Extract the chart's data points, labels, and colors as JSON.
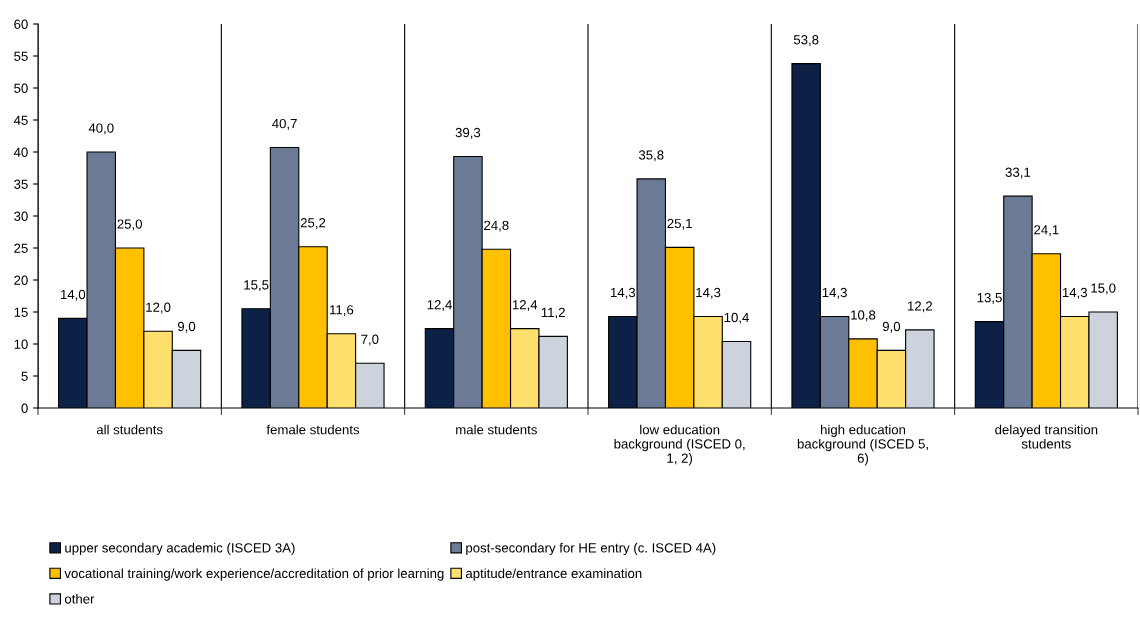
{
  "chart_data": {
    "type": "bar",
    "categories": [
      "all students",
      "female students",
      "male students",
      "low education\nbackground (ISCED 0,\n1, 2)",
      "high education\nbackground (ISCED 5,\n6)",
      "delayed transition\nstudents"
    ],
    "series": [
      {
        "name": "upper secondary academic (ISCED 3A)",
        "color": "#0d2147",
        "values": [
          14.0,
          15.5,
          12.4,
          14.3,
          53.8,
          13.5
        ],
        "value_labels": [
          "14,0",
          "15,5",
          "12,4",
          "14,3",
          "53,8",
          "13,5"
        ]
      },
      {
        "name": "post-secondary for HE entry (c. ISCED 4A)",
        "color": "#6b7b96",
        "values": [
          40.0,
          40.7,
          39.3,
          35.8,
          14.3,
          33.1
        ],
        "value_labels": [
          "40,0",
          "40,7",
          "39,3",
          "35,8",
          "14,3",
          "33,1"
        ]
      },
      {
        "name": "vocational training/work experience/accreditation of prior learning",
        "color": "#ffc000",
        "values": [
          25.0,
          25.2,
          24.8,
          25.1,
          10.8,
          24.1
        ],
        "value_labels": [
          "25,0",
          "25,2",
          "24,8",
          "25,1",
          "10,8",
          "24,1"
        ]
      },
      {
        "name": "aptitude/entrance examination",
        "color": "#ffdf6e",
        "values": [
          12.0,
          11.6,
          12.4,
          14.3,
          9.0,
          14.3
        ],
        "value_labels": [
          "12,0",
          "11,6",
          "12,4",
          "14,3",
          "9,0",
          "14,3"
        ]
      },
      {
        "name": "other",
        "color": "#cdd3dd",
        "values": [
          9.0,
          7.0,
          11.2,
          10.4,
          12.2,
          15.0
        ],
        "value_labels": [
          "9,0",
          "7,0",
          "11,2",
          "10,4",
          "12,2",
          "15,0"
        ]
      }
    ],
    "ylim": [
      0,
      60
    ],
    "yticks": [
      0,
      5,
      10,
      15,
      20,
      25,
      30,
      35,
      40,
      45,
      50,
      55,
      60
    ],
    "grid": "x",
    "legend": "bottom"
  }
}
